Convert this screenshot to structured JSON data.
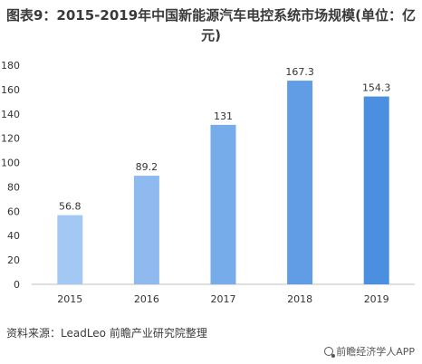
{
  "header": {
    "title": "图表9：2015-2019年中国新能源汽车电控系统市场规模(单位：亿元)"
  },
  "chart_data": {
    "type": "bar",
    "categories": [
      "2015",
      "2016",
      "2017",
      "2018",
      "2019"
    ],
    "values": [
      56.8,
      89.2,
      131,
      167.3,
      154.3
    ],
    "value_labels": [
      "56.8",
      "89.2",
      "131",
      "167.3",
      "154.3"
    ],
    "title": "图表9：2015-2019年中国新能源汽车电控系统市场规模(单位：亿元)",
    "xlabel": "",
    "ylabel": "",
    "ylim": [
      0,
      180
    ],
    "yticks": [
      0,
      20,
      40,
      60,
      80,
      100,
      120,
      140,
      160,
      180
    ],
    "grid": false,
    "legend": "none",
    "colors": {
      "bar_light": "#a4c8f4",
      "bar_dark": "#4a8fe0",
      "axis": "#bfbfbf",
      "text": "#333333"
    }
  },
  "footer": {
    "source": "资料来源：LeadLeo 前瞻产业研究院整理",
    "brand": "前瞻经济学人APP",
    "brand_icon": "brand-logo-icon"
  }
}
